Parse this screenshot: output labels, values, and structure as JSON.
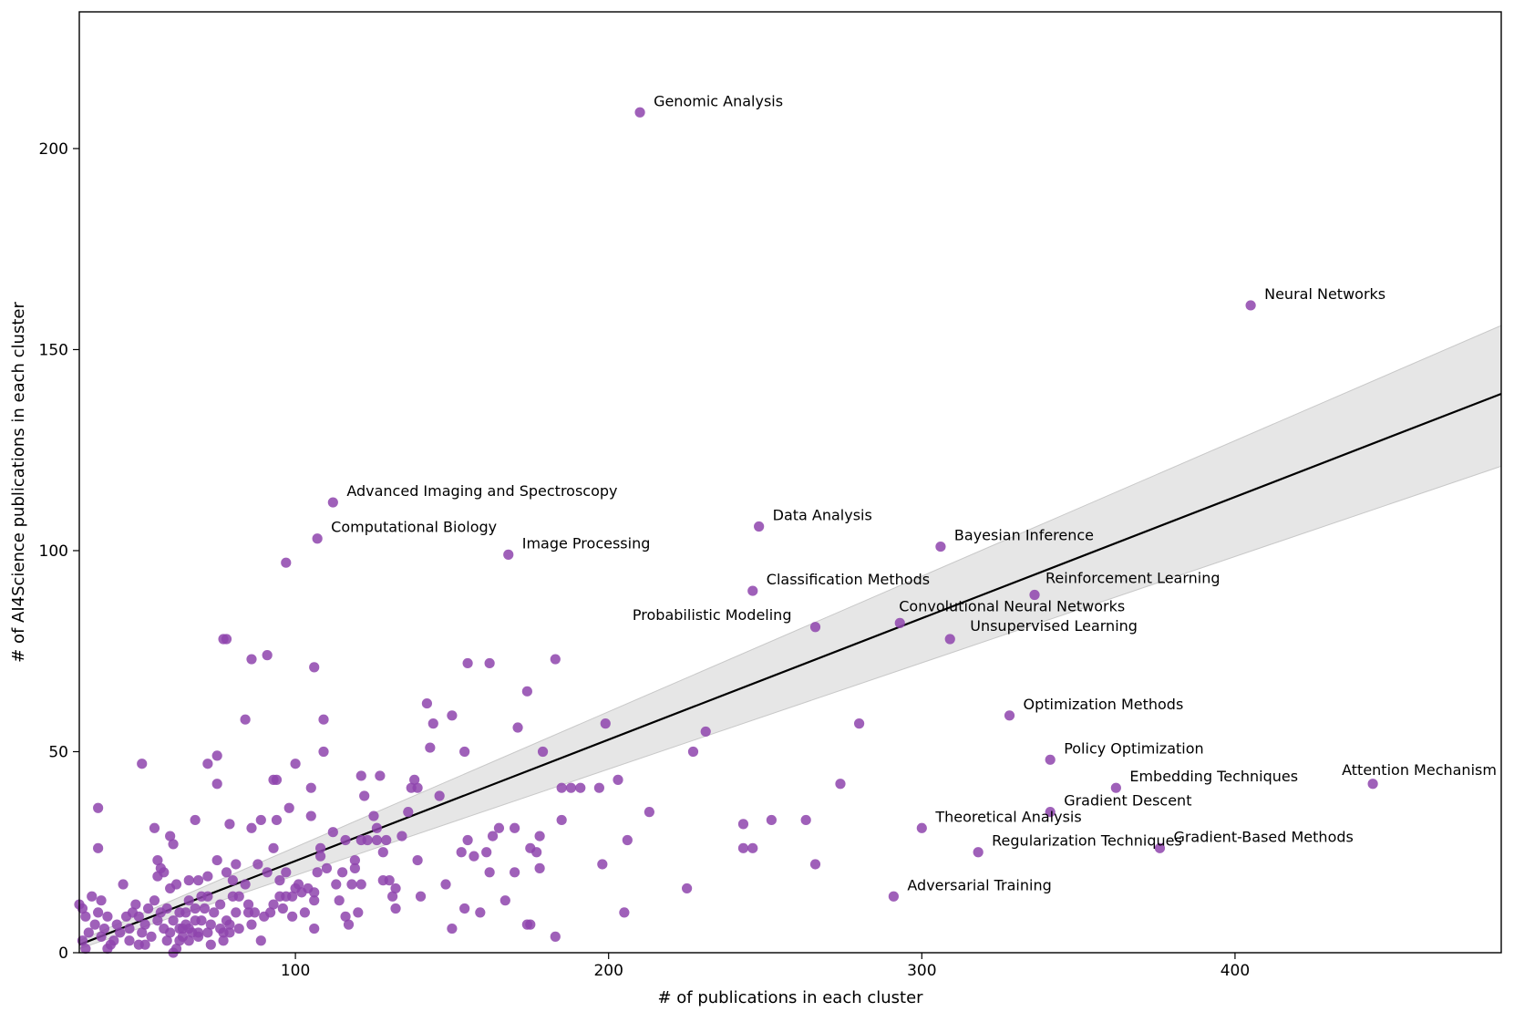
{
  "chart_data": {
    "type": "scatter",
    "title": "",
    "xlabel": "# of publications in each cluster",
    "ylabel": "# of AI4Science publications in each cluster",
    "xlim": [
      31,
      485
    ],
    "ylim": [
      0,
      234
    ],
    "xticks": [
      100,
      200,
      300,
      400
    ],
    "yticks": [
      0,
      50,
      100,
      150,
      200
    ],
    "grid": false,
    "colors": {
      "point": "#8e44ad",
      "line": "#000000",
      "band": "#d9d9d9",
      "frame": "#000000"
    },
    "regression": {
      "x": [
        31,
        485
      ],
      "y": [
        2,
        139
      ],
      "band_low": [
        1,
        121
      ],
      "band_high": [
        3,
        156
      ]
    },
    "labeled_points": [
      {
        "label": "Genomic Analysis",
        "x": 210,
        "y": 209
      },
      {
        "label": "Neural Networks",
        "x": 405,
        "y": 161
      },
      {
        "label": "Advanced Imaging and Spectroscopy",
        "x": 112,
        "y": 112
      },
      {
        "label": "Computational Biology",
        "x": 107,
        "y": 103
      },
      {
        "label": "Image Processing",
        "x": 168,
        "y": 99
      },
      {
        "label": "Data Analysis",
        "x": 248,
        "y": 106
      },
      {
        "label": "Bayesian Inference",
        "x": 306,
        "y": 101
      },
      {
        "label": "Classification Methods",
        "x": 246,
        "y": 90
      },
      {
        "label": "Reinforcement Learning",
        "x": 336,
        "y": 89
      },
      {
        "label": "Convolutional Neural Networks",
        "x": 293,
        "y": 82
      },
      {
        "label": "Probabilistic Modeling",
        "x": 266,
        "y": 81
      },
      {
        "label": "Unsupervised Learning",
        "x": 309,
        "y": 78
      },
      {
        "label": "Optimization Methods",
        "x": 328,
        "y": 59
      },
      {
        "label": "Policy Optimization",
        "x": 341,
        "y": 48
      },
      {
        "label": "Embedding Techniques",
        "x": 362,
        "y": 41
      },
      {
        "label": "Attention Mechanism",
        "x": 444,
        "y": 42
      },
      {
        "label": "Gradient Descent",
        "x": 341,
        "y": 35
      },
      {
        "label": "Theoretical Analysis",
        "x": 300,
        "y": 31
      },
      {
        "label": "Gradient-Based Methods",
        "x": 376,
        "y": 26
      },
      {
        "label": "Regularization Techniques",
        "x": 318,
        "y": 25
      },
      {
        "label": "Adversarial Training",
        "x": 291,
        "y": 14
      }
    ],
    "points": [
      [
        97,
        97
      ],
      [
        77,
        78
      ],
      [
        78,
        78
      ],
      [
        91,
        74
      ],
      [
        86,
        73
      ],
      [
        106,
        71
      ],
      [
        84,
        58
      ],
      [
        109,
        58
      ],
      [
        109,
        50
      ],
      [
        93,
        43
      ],
      [
        94,
        43
      ],
      [
        100,
        47
      ],
      [
        98,
        36
      ],
      [
        105,
        41
      ],
      [
        105,
        34
      ],
      [
        94,
        33
      ],
      [
        89,
        33
      ],
      [
        68,
        33
      ],
      [
        72,
        47
      ],
      [
        75,
        49
      ],
      [
        75,
        42
      ],
      [
        79,
        32
      ],
      [
        86,
        31
      ],
      [
        60,
        29
      ],
      [
        61,
        27
      ],
      [
        51,
        47
      ],
      [
        37,
        36
      ],
      [
        37,
        26
      ],
      [
        55,
        31
      ],
      [
        56,
        23
      ],
      [
        57,
        21
      ],
      [
        58,
        20
      ],
      [
        56,
        19
      ],
      [
        62,
        17
      ],
      [
        66,
        18
      ],
      [
        69,
        18
      ],
      [
        72,
        19
      ],
      [
        75,
        23
      ],
      [
        78,
        20
      ],
      [
        81,
        22
      ],
      [
        84,
        17
      ],
      [
        88,
        22
      ],
      [
        91,
        20
      ],
      [
        93,
        26
      ],
      [
        95,
        18
      ],
      [
        97,
        20
      ],
      [
        101,
        17
      ],
      [
        104,
        16
      ],
      [
        108,
        26
      ],
      [
        112,
        30
      ],
      [
        115,
        20
      ],
      [
        119,
        23
      ],
      [
        121,
        44
      ],
      [
        122,
        39
      ],
      [
        127,
        44
      ],
      [
        125,
        34
      ],
      [
        126,
        31
      ],
      [
        129,
        28
      ],
      [
        134,
        29
      ],
      [
        137,
        41
      ],
      [
        139,
        41
      ],
      [
        138,
        43
      ],
      [
        142,
        62
      ],
      [
        144,
        57
      ],
      [
        143,
        51
      ],
      [
        150,
        59
      ],
      [
        155,
        72
      ],
      [
        162,
        72
      ],
      [
        154,
        50
      ],
      [
        146,
        39
      ],
      [
        155,
        28
      ],
      [
        153,
        25
      ],
      [
        157,
        24
      ],
      [
        163,
        29
      ],
      [
        161,
        25
      ],
      [
        165,
        31
      ],
      [
        170,
        31
      ],
      [
        174,
        65
      ],
      [
        171,
        56
      ],
      [
        179,
        50
      ],
      [
        183,
        73
      ],
      [
        178,
        29
      ],
      [
        177,
        25
      ],
      [
        178,
        21
      ],
      [
        175,
        26
      ],
      [
        185,
        41
      ],
      [
        188,
        41
      ],
      [
        191,
        41
      ],
      [
        197,
        41
      ],
      [
        203,
        43
      ],
      [
        199,
        57
      ],
      [
        185,
        33
      ],
      [
        213,
        35
      ],
      [
        206,
        28
      ],
      [
        198,
        22
      ],
      [
        227,
        50
      ],
      [
        231,
        55
      ],
      [
        225,
        16
      ],
      [
        243,
        32
      ],
      [
        243,
        26
      ],
      [
        246,
        26
      ],
      [
        252,
        33
      ],
      [
        263,
        33
      ],
      [
        266,
        22
      ],
      [
        274,
        42
      ],
      [
        280,
        57
      ],
      [
        205,
        10
      ],
      [
        183,
        4
      ],
      [
        175,
        7
      ],
      [
        174,
        7
      ],
      [
        170,
        20
      ],
      [
        167,
        13
      ],
      [
        162,
        20
      ],
      [
        159,
        10
      ],
      [
        154,
        11
      ],
      [
        150,
        6
      ],
      [
        148,
        17
      ],
      [
        140,
        14
      ],
      [
        139,
        23
      ],
      [
        136,
        35
      ],
      [
        132,
        16
      ],
      [
        132,
        11
      ],
      [
        131,
        14
      ],
      [
        128,
        18
      ],
      [
        128,
        25
      ],
      [
        126,
        28
      ],
      [
        121,
        28
      ],
      [
        121,
        17
      ],
      [
        118,
        17
      ],
      [
        117,
        7
      ],
      [
        120,
        10
      ],
      [
        116,
        9
      ],
      [
        114,
        13
      ],
      [
        110,
        21
      ],
      [
        107,
        20
      ],
      [
        106,
        15
      ],
      [
        106,
        13
      ],
      [
        106,
        6
      ],
      [
        103,
        10
      ],
      [
        99,
        9
      ],
      [
        99,
        14
      ],
      [
        97,
        14
      ],
      [
        95,
        14
      ],
      [
        93,
        12
      ],
      [
        92,
        10
      ],
      [
        89,
        3
      ],
      [
        86,
        7
      ],
      [
        85,
        10
      ],
      [
        85,
        12
      ],
      [
        82,
        14
      ],
      [
        81,
        10
      ],
      [
        80,
        14
      ],
      [
        79,
        7
      ],
      [
        79,
        5
      ],
      [
        77,
        5
      ],
      [
        77,
        3
      ],
      [
        76,
        6
      ],
      [
        73,
        7
      ],
      [
        72,
        5
      ],
      [
        71,
        11
      ],
      [
        70,
        8
      ],
      [
        69,
        5
      ],
      [
        68,
        11
      ],
      [
        68,
        8
      ],
      [
        66,
        6
      ],
      [
        65,
        10
      ],
      [
        64,
        6
      ],
      [
        63,
        3
      ],
      [
        61,
        8
      ],
      [
        60,
        5
      ],
      [
        59,
        3
      ],
      [
        58,
        6
      ],
      [
        57,
        10
      ],
      [
        56,
        8
      ],
      [
        55,
        13
      ],
      [
        54,
        4
      ],
      [
        52,
        7
      ],
      [
        52,
        2
      ],
      [
        51,
        5
      ],
      [
        50,
        9
      ],
      [
        49,
        12
      ],
      [
        48,
        10
      ],
      [
        47,
        6
      ],
      [
        47,
        3
      ],
      [
        46,
        9
      ],
      [
        45,
        17
      ],
      [
        44,
        5
      ],
      [
        43,
        7
      ],
      [
        42,
        3
      ],
      [
        41,
        2
      ],
      [
        40,
        9
      ],
      [
        39,
        6
      ],
      [
        38,
        4
      ],
      [
        37,
        10
      ],
      [
        36,
        7
      ],
      [
        35,
        14
      ],
      [
        34,
        5
      ],
      [
        33,
        9
      ],
      [
        32,
        11
      ],
      [
        31,
        12
      ],
      [
        32,
        3
      ],
      [
        33,
        1
      ],
      [
        38,
        13
      ],
      [
        40,
        1
      ],
      [
        50,
        2
      ],
      [
        53,
        11
      ],
      [
        59,
        11
      ],
      [
        60,
        16
      ],
      [
        63,
        6
      ],
      [
        61,
        0
      ],
      [
        62,
        1
      ],
      [
        64,
        4
      ],
      [
        66,
        3
      ],
      [
        67,
        5
      ],
      [
        69,
        4
      ],
      [
        70,
        14
      ],
      [
        73,
        2
      ],
      [
        74,
        10
      ],
      [
        76,
        12
      ],
      [
        78,
        8
      ],
      [
        80,
        18
      ],
      [
        82,
        6
      ],
      [
        87,
        10
      ],
      [
        90,
        9
      ],
      [
        96,
        11
      ],
      [
        100,
        16
      ],
      [
        102,
        15
      ],
      [
        108,
        24
      ],
      [
        113,
        17
      ],
      [
        116,
        28
      ],
      [
        119,
        21
      ],
      [
        123,
        28
      ],
      [
        130,
        18
      ],
      [
        72,
        14
      ],
      [
        65,
        7
      ],
      [
        66,
        13
      ],
      [
        63,
        10
      ]
    ]
  }
}
